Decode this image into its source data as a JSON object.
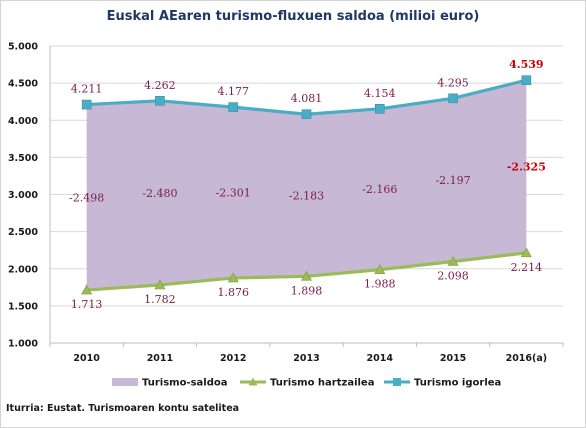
{
  "chart_data": {
    "type": "line",
    "title": "Euskal AEaren turismo-fluxuen saldoa (milioi euro)",
    "source": "Iturria: Eustat. Turismoaren kontu satelitea",
    "categories": [
      "2010",
      "2011",
      "2012",
      "2013",
      "2014",
      "2015",
      "2016(a)"
    ],
    "ylim": [
      1000,
      5000
    ],
    "yticks": [
      1000,
      1500,
      2000,
      2500,
      3000,
      3500,
      4000,
      4500,
      5000
    ],
    "ytick_labels": [
      "1.000",
      "1.500",
      "2.000",
      "2.500",
      "3.000",
      "3.500",
      "4.000",
      "4.500",
      "5.000"
    ],
    "grid": true,
    "legend_position": "bottom",
    "series": [
      {
        "name": "Turismo-saldoa",
        "kind": "area",
        "color": "#c7b9d6",
        "values": [
          -2498,
          -2480,
          -2301,
          -2183,
          -2166,
          -2197,
          -2325
        ],
        "labels": [
          "-2.498",
          "-2.480",
          "-2.301",
          "-2.183",
          "-2.166",
          "-2.197",
          "-2.325"
        ]
      },
      {
        "name": "Turismo hartzailea",
        "kind": "line",
        "color": "#9bbb59",
        "values": [
          1713,
          1782,
          1876,
          1898,
          1988,
          2098,
          2214
        ],
        "labels": [
          "1.713",
          "1.782",
          "1.876",
          "1.898",
          "1.988",
          "2.098",
          "2.214"
        ]
      },
      {
        "name": "Turismo igorlea",
        "kind": "line",
        "color": "#4bacc6",
        "values": [
          4211,
          4262,
          4177,
          4081,
          4154,
          4295,
          4539
        ],
        "labels": [
          "4.211",
          "4.262",
          "4.177",
          "4.081",
          "4.154",
          "4.295",
          "4.539"
        ]
      }
    ],
    "last_label_color": "#d00000",
    "label_color": "#7b2048"
  }
}
